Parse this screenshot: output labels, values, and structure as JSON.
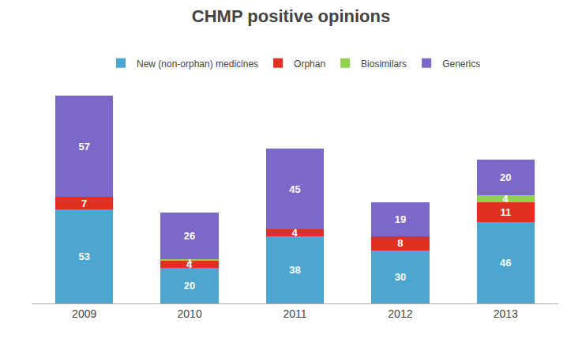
{
  "chart_data": {
    "type": "bar",
    "title": "CHMP positive opinions",
    "categories": [
      "2009",
      "2010",
      "2011",
      "2012",
      "2013"
    ],
    "series": [
      {
        "name": "New (non-orphan) medicines",
        "color": "#4DA6D0",
        "values": [
          53,
          20,
          38,
          30,
          46
        ]
      },
      {
        "name": "Orphan",
        "color": "#E03020",
        "values": [
          7,
          4,
          4,
          8,
          11
        ]
      },
      {
        "name": "Biosimilars",
        "color": "#92D050",
        "values": [
          0,
          1,
          0,
          0,
          4
        ]
      },
      {
        "name": "Generics",
        "color": "#7B68C8",
        "values": [
          57,
          26,
          45,
          19,
          20
        ]
      }
    ],
    "stacked": true,
    "data_labels": true,
    "ylim": [
      0,
      126.36
    ],
    "grid": false,
    "legend": "top",
    "tick_labels": "x"
  }
}
